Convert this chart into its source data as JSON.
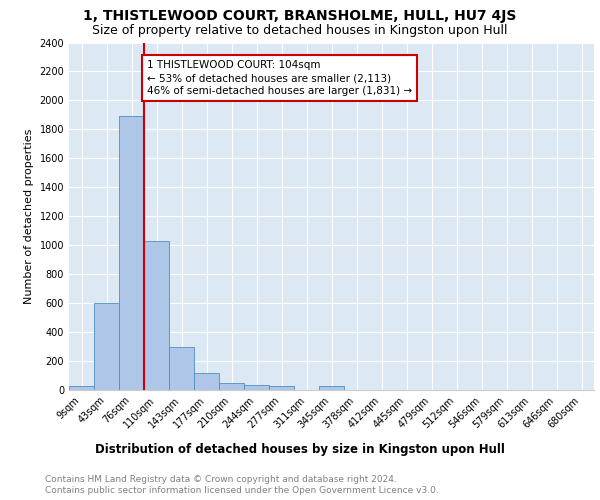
{
  "title1": "1, THISTLEWOOD COURT, BRANSHOLME, HULL, HU7 4JS",
  "title2": "Size of property relative to detached houses in Kingston upon Hull",
  "xlabel": "Distribution of detached houses by size in Kingston upon Hull",
  "ylabel": "Number of detached properties",
  "bin_labels": [
    "9sqm",
    "43sqm",
    "76sqm",
    "110sqm",
    "143sqm",
    "177sqm",
    "210sqm",
    "244sqm",
    "277sqm",
    "311sqm",
    "345sqm",
    "378sqm",
    "412sqm",
    "445sqm",
    "479sqm",
    "512sqm",
    "546sqm",
    "579sqm",
    "613sqm",
    "646sqm",
    "680sqm"
  ],
  "bar_heights": [
    25,
    600,
    1890,
    1030,
    295,
    115,
    50,
    35,
    25,
    0,
    25,
    0,
    0,
    0,
    0,
    0,
    0,
    0,
    0,
    0,
    0
  ],
  "bar_color": "#aec6e8",
  "bar_edge_color": "#4f8fc0",
  "background_color": "#dde8f5",
  "grid_color": "#ffffff",
  "annotation_text": "1 THISTLEWOOD COURT: 104sqm\n← 53% of detached houses are smaller (2,113)\n46% of semi-detached houses are larger (1,831) →",
  "annotation_box_color": "#ffffff",
  "annotation_box_edge": "#cc0000",
  "red_line_color": "#cc0000",
  "ylim": [
    0,
    2400
  ],
  "yticks": [
    0,
    200,
    400,
    600,
    800,
    1000,
    1200,
    1400,
    1600,
    1800,
    2000,
    2200,
    2400
  ],
  "footnote1": "Contains HM Land Registry data © Crown copyright and database right 2024.",
  "footnote2": "Contains public sector information licensed under the Open Government Licence v3.0.",
  "title1_fontsize": 10,
  "title2_fontsize": 9,
  "xlabel_fontsize": 8.5,
  "ylabel_fontsize": 8,
  "tick_fontsize": 7,
  "annotation_fontsize": 7.5,
  "footnote_fontsize": 6.5
}
